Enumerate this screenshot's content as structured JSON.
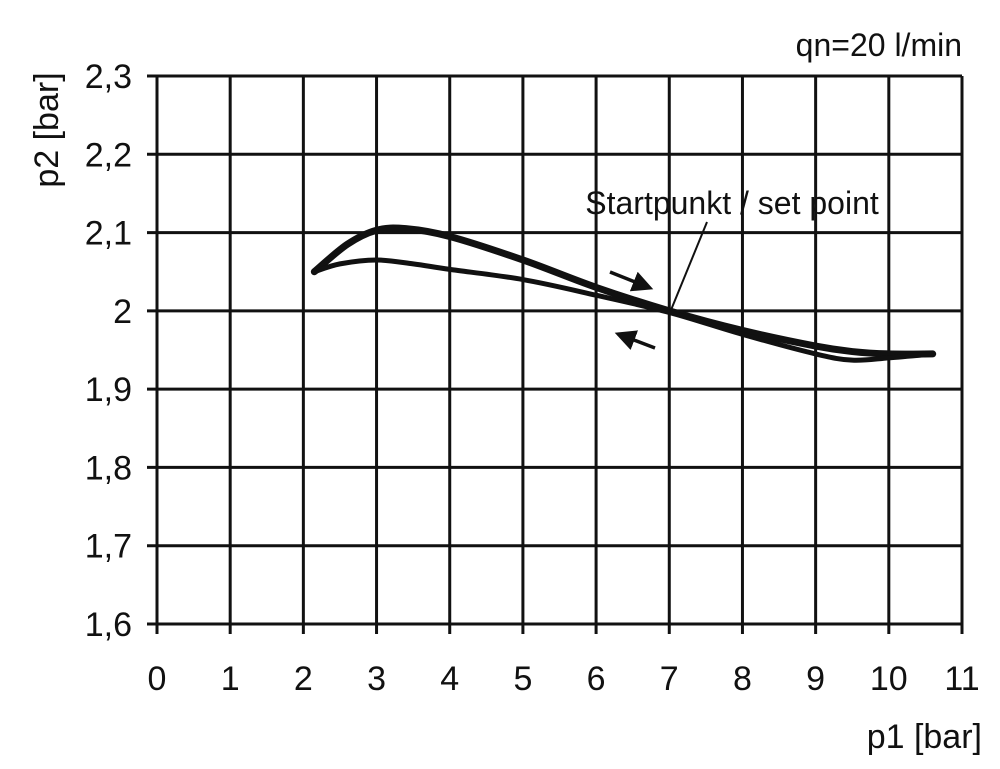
{
  "chart_data": {
    "type": "line",
    "title": "",
    "annotation_top_right": "qn=20 l/min",
    "xlabel": "p1 [bar]",
    "ylabel": "p2 [bar]",
    "xlim": [
      0,
      11
    ],
    "ylim": [
      1.6,
      2.3
    ],
    "grid": true,
    "x_ticks": [
      "0",
      "1",
      "2",
      "3",
      "4",
      "5",
      "6",
      "7",
      "8",
      "9",
      "10",
      "11"
    ],
    "y_ticks": [
      "1,6",
      "1,7",
      "1,8",
      "1,9",
      "2",
      "2,1",
      "2,2",
      "2,3"
    ],
    "set_point_label": "Startpunkt / set point",
    "line_color": "#111111",
    "series": [
      {
        "direction": "increasing p1",
        "x": [
          2.15,
          2.6,
          3.0,
          3.4,
          4.0,
          5.0,
          6.0,
          7.0,
          8.0,
          9.0,
          9.5,
          10.0,
          10.6
        ],
        "y": [
          2.05,
          2.085,
          2.103,
          2.105,
          2.095,
          2.065,
          2.03,
          2.0,
          1.975,
          1.955,
          1.948,
          1.945,
          1.945
        ]
      },
      {
        "direction": "decreasing p1",
        "x": [
          2.15,
          2.5,
          3.0,
          3.5,
          4.0,
          5.0,
          6.0,
          7.0,
          8.0,
          9.0,
          9.5,
          10.0,
          10.6
        ],
        "y": [
          2.05,
          2.06,
          2.065,
          2.06,
          2.053,
          2.04,
          2.02,
          1.998,
          1.97,
          1.945,
          1.937,
          1.94,
          1.945
        ]
      }
    ]
  }
}
